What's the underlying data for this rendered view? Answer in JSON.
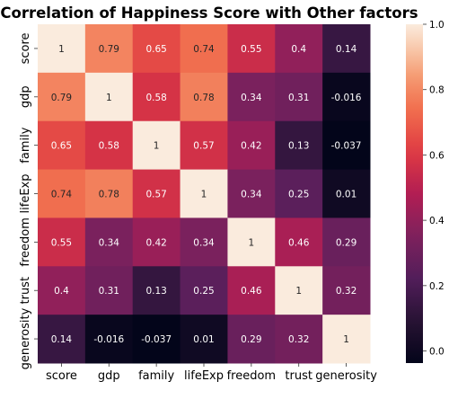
{
  "chart_data": {
    "type": "heatmap",
    "title": "Correlation of Happiness Score with Other factors",
    "row_labels": [
      "score",
      "gdp",
      "family",
      "lifeExp",
      "freedom",
      "trust",
      "generosity"
    ],
    "col_labels": [
      "score",
      "gdp",
      "family",
      "lifeExp",
      "freedom",
      "trust",
      "generosity"
    ],
    "values": [
      [
        1,
        0.79,
        0.65,
        0.74,
        0.55,
        0.4,
        0.14
      ],
      [
        0.79,
        1,
        0.58,
        0.78,
        0.34,
        0.31,
        -0.016
      ],
      [
        0.65,
        0.58,
        1,
        0.57,
        0.42,
        0.13,
        -0.037
      ],
      [
        0.74,
        0.78,
        0.57,
        1,
        0.34,
        0.25,
        0.01
      ],
      [
        0.55,
        0.34,
        0.42,
        0.34,
        1,
        0.46,
        0.29
      ],
      [
        0.4,
        0.31,
        0.13,
        0.25,
        0.46,
        1,
        0.32
      ],
      [
        0.14,
        -0.016,
        -0.037,
        0.01,
        0.29,
        0.32,
        1
      ]
    ],
    "value_labels": [
      [
        "1",
        "0.79",
        "0.65",
        "0.74",
        "0.55",
        "0.4",
        "0.14"
      ],
      [
        "0.79",
        "1",
        "0.58",
        "0.78",
        "0.34",
        "0.31",
        "-0.016"
      ],
      [
        "0.65",
        "0.58",
        "1",
        "0.57",
        "0.42",
        "0.13",
        "-0.037"
      ],
      [
        "0.74",
        "0.78",
        "0.57",
        "1",
        "0.34",
        "0.25",
        "0.01"
      ],
      [
        "0.55",
        "0.34",
        "0.42",
        "0.34",
        "1",
        "0.46",
        "0.29"
      ],
      [
        "0.4",
        "0.31",
        "0.13",
        "0.25",
        "0.46",
        "1",
        "0.32"
      ],
      [
        "0.14",
        "-0.016",
        "-0.037",
        "0.01",
        "0.29",
        "0.32",
        "1"
      ]
    ],
    "colormap": "rocket",
    "colorbar": {
      "min": -0.037,
      "max": 1,
      "ticks": [
        0.0,
        0.2,
        0.4,
        0.6,
        0.8,
        1.0
      ],
      "tick_labels": [
        "0.0",
        "0.2",
        "0.4",
        "0.6",
        "0.8",
        "1.0"
      ]
    }
  }
}
